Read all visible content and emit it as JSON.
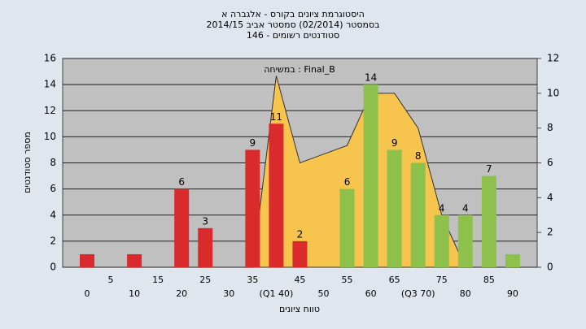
{
  "chart_data": {
    "type": "bar",
    "title": "היסטוגרמת ציונים בקורס - אלגברה א",
    "subtitle": "בסמסטר  (02/2014)  סמסטר אביב 2014/15",
    "subtitle2": "סטודנטים רשומים - 146",
    "xlabel": "טווח ציונים",
    "ylabel": "מספר סטודנטים",
    "categories": [
      "0",
      "5",
      "10",
      "15",
      "20",
      "25",
      "30",
      "35",
      "(Q1 40)",
      "45",
      "50",
      "55",
      "60",
      "65",
      "(Q3 70)",
      "75",
      "80",
      "85",
      "90"
    ],
    "values": [
      1,
      0,
      1,
      0,
      6,
      3,
      0,
      9,
      11,
      2,
      0,
      6,
      14,
      9,
      8,
      4,
      4,
      7,
      1
    ],
    "bar_colors": [
      "#d92b2b",
      "#d92b2b",
      "#d92b2b",
      "#d92b2b",
      "#d92b2b",
      "#d92b2b",
      "#d92b2b",
      "#d92b2b",
      "#d92b2b",
      "#d92b2b",
      "#d92b2b",
      "#8ec04c",
      "#8ec04c",
      "#8ec04c",
      "#8ec04c",
      "#8ec04c",
      "#8ec04c",
      "#8ec04c",
      "#8ec04c"
    ],
    "series": [
      {
        "name": "Final_B : במשיחה",
        "color": "#f7c44e",
        "axis": "y2",
        "values": [
          null,
          null,
          null,
          null,
          null,
          null,
          null,
          0,
          11,
          6,
          6.5,
          7,
          10,
          10,
          8,
          3,
          0,
          null,
          null
        ]
      }
    ],
    "ylim": [
      0,
      16
    ],
    "yticks": [
      0,
      2,
      4,
      6,
      8,
      10,
      12,
      14,
      16
    ],
    "y2lim": [
      0,
      12
    ],
    "y2ticks": [
      0,
      2,
      4,
      6,
      8,
      10,
      12
    ],
    "grid": true
  }
}
